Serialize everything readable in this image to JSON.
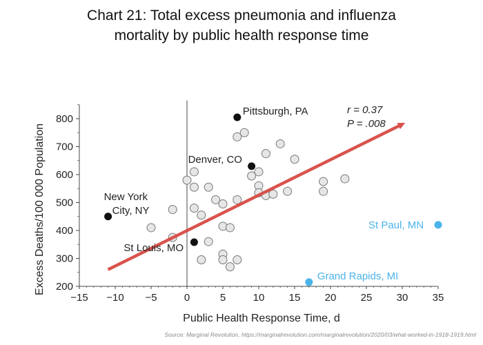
{
  "title": {
    "line1": "Chart 21: Total excess pneumonia and influenza",
    "line2": "mortality by public health response time"
  },
  "source": "Source: Marginal Revolution, https://marginalrevolution.com/marginalrevolution/2020/03/what-worked-in-1918-1919.html",
  "chart_data": {
    "type": "scatter",
    "xlabel": "Public Health Response Time, d",
    "ylabel": "Excess Deaths/100 000 Population",
    "xlim": [
      -15,
      35
    ],
    "ylim": [
      200,
      850
    ],
    "xticks": [
      -15,
      -10,
      -5,
      0,
      5,
      10,
      15,
      20,
      25,
      30,
      35
    ],
    "yticks": [
      200,
      300,
      400,
      500,
      600,
      700,
      800
    ],
    "stats": {
      "r": "r = 0.37",
      "p": "P = .008"
    },
    "highlighted_cities": [
      {
        "label": "Pittsburgh, PA",
        "x": 7,
        "y": 805
      },
      {
        "label": "Denver, CO",
        "x": 9,
        "y": 630
      },
      {
        "label_lines": [
          "New York",
          "City, NY"
        ],
        "x": -11,
        "y": 450
      },
      {
        "label": "St Louis, MO",
        "x": 1,
        "y": 358
      }
    ],
    "outlier_cities": [
      {
        "label": "St Paul, MN",
        "x": 35,
        "y": 420
      },
      {
        "label": "Grand Rapids, MI",
        "x": 17,
        "y": 215
      }
    ],
    "other_cities": [
      {
        "x": -5,
        "y": 410
      },
      {
        "x": -2,
        "y": 475
      },
      {
        "x": -2,
        "y": 375
      },
      {
        "x": 0,
        "y": 580
      },
      {
        "x": 1,
        "y": 610
      },
      {
        "x": 1,
        "y": 555
      },
      {
        "x": 1,
        "y": 480
      },
      {
        "x": 2,
        "y": 455
      },
      {
        "x": 2,
        "y": 295
      },
      {
        "x": 3,
        "y": 555
      },
      {
        "x": 3,
        "y": 360
      },
      {
        "x": 4,
        "y": 510
      },
      {
        "x": 5,
        "y": 495
      },
      {
        "x": 5,
        "y": 415
      },
      {
        "x": 5,
        "y": 315
      },
      {
        "x": 5,
        "y": 295
      },
      {
        "x": 6,
        "y": 410
      },
      {
        "x": 6,
        "y": 270
      },
      {
        "x": 7,
        "y": 735
      },
      {
        "x": 7,
        "y": 510
      },
      {
        "x": 7,
        "y": 295
      },
      {
        "x": 8,
        "y": 750
      },
      {
        "x": 9,
        "y": 595
      },
      {
        "x": 10,
        "y": 610
      },
      {
        "x": 10,
        "y": 560
      },
      {
        "x": 10,
        "y": 535
      },
      {
        "x": 11,
        "y": 675
      },
      {
        "x": 11,
        "y": 525
      },
      {
        "x": 12,
        "y": 530
      },
      {
        "x": 13,
        "y": 710
      },
      {
        "x": 14,
        "y": 540
      },
      {
        "x": 15,
        "y": 655
      },
      {
        "x": 19,
        "y": 575
      },
      {
        "x": 19,
        "y": 540
      },
      {
        "x": 22,
        "y": 585
      }
    ],
    "trend_arrow": {
      "from": {
        "x": -11,
        "y": 260
      },
      "to": {
        "x": 30,
        "y": 780
      }
    },
    "colors": {
      "highlight": "#111111",
      "outlier": "#4ab3ea",
      "open_fill": "#e6e6e6",
      "open_stroke": "#777777",
      "arrow": "#d84a44",
      "axis": "#444444",
      "text": "#222222"
    }
  }
}
